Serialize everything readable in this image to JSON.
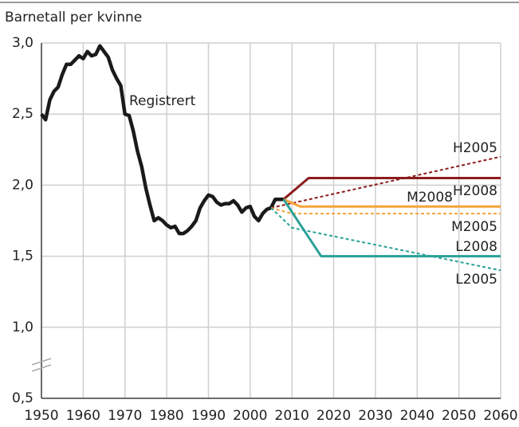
{
  "chart_data": {
    "type": "line",
    "title": "Barnetall per kvinne",
    "xlim": [
      1950,
      2060
    ],
    "xticks": [
      1950,
      1960,
      1970,
      1980,
      1990,
      2000,
      2010,
      2020,
      2030,
      2040,
      2050,
      2060
    ],
    "ylim": [
      0.5,
      3.0
    ],
    "yticks": [
      {
        "value": 0.5,
        "label": "0,5"
      },
      {
        "value": 1.0,
        "label": "1,0"
      },
      {
        "value": 1.5,
        "label": "1,5"
      },
      {
        "value": 2.0,
        "label": "2,0"
      },
      {
        "value": 2.5,
        "label": "2,5"
      },
      {
        "value": 3.0,
        "label": "3,0"
      }
    ],
    "grid": true,
    "series": [
      {
        "name": "Registrert",
        "color": "#1a1a1a",
        "dashed": false,
        "x": [
          1950,
          1951,
          1952,
          1953,
          1954,
          1955,
          1956,
          1957,
          1958,
          1959,
          1960,
          1961,
          1962,
          1963,
          1964,
          1965,
          1966,
          1967,
          1968,
          1969,
          1970,
          1971,
          1972,
          1973,
          1974,
          1975,
          1976,
          1977,
          1978,
          1979,
          1980,
          1981,
          1982,
          1983,
          1984,
          1985,
          1986,
          1987,
          1988,
          1989,
          1990,
          1991,
          1992,
          1993,
          1994,
          1995,
          1996,
          1997,
          1998,
          1999,
          2000,
          2001,
          2002,
          2003,
          2004,
          2005,
          2006,
          2007,
          2008
        ],
        "values": [
          2.5,
          2.46,
          2.6,
          2.66,
          2.69,
          2.78,
          2.85,
          2.85,
          2.88,
          2.91,
          2.89,
          2.94,
          2.91,
          2.92,
          2.98,
          2.94,
          2.9,
          2.81,
          2.75,
          2.7,
          2.5,
          2.49,
          2.38,
          2.24,
          2.13,
          1.98,
          1.86,
          1.75,
          1.77,
          1.75,
          1.72,
          1.7,
          1.71,
          1.66,
          1.66,
          1.68,
          1.71,
          1.75,
          1.84,
          1.89,
          1.93,
          1.92,
          1.88,
          1.86,
          1.87,
          1.87,
          1.89,
          1.86,
          1.81,
          1.84,
          1.85,
          1.78,
          1.75,
          1.8,
          1.83,
          1.84,
          1.9,
          1.9,
          1.9
        ]
      },
      {
        "name": "H2005",
        "color": "#8c1c1c",
        "dashed": true,
        "x": [
          2005,
          2060
        ],
        "values": [
          1.84,
          2.2
        ]
      },
      {
        "name": "H2008",
        "color": "#8c1c1c",
        "dashed": false,
        "x": [
          2008,
          2014,
          2060
        ],
        "values": [
          1.9,
          2.05,
          2.05
        ]
      },
      {
        "name": "M2008",
        "color": "#f5a33a",
        "dashed": false,
        "x": [
          2008,
          2012,
          2060
        ],
        "values": [
          1.9,
          1.85,
          1.85
        ]
      },
      {
        "name": "M2005",
        "color": "#f5a33a",
        "dashed": true,
        "x": [
          2005,
          2010,
          2060
        ],
        "values": [
          1.84,
          1.8,
          1.8
        ]
      },
      {
        "name": "L2008",
        "color": "#2aa198",
        "dashed": false,
        "x": [
          2008,
          2017,
          2060
        ],
        "values": [
          1.9,
          1.5,
          1.5
        ]
      },
      {
        "name": "L2005",
        "color": "#2aa198",
        "dashed": true,
        "x": [
          2005,
          2010,
          2060
        ],
        "values": [
          1.84,
          1.7,
          1.4
        ]
      }
    ]
  }
}
